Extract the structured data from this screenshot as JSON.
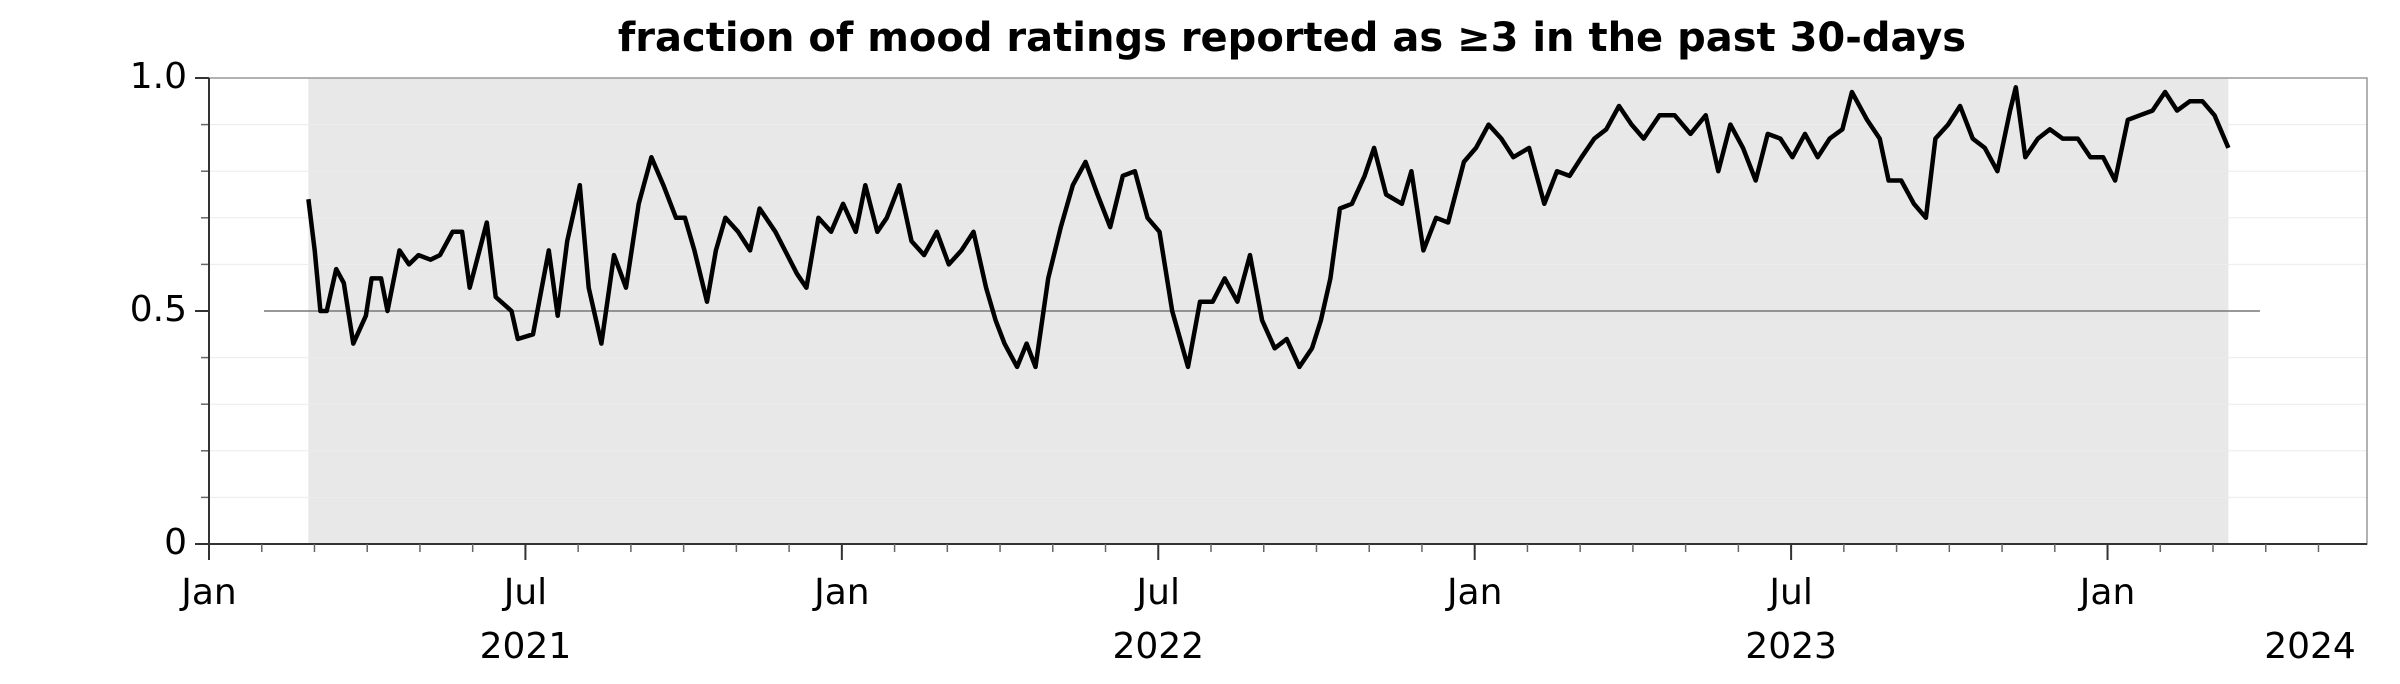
{
  "chart_data": {
    "type": "line",
    "title": "fraction of mood ratings reported as ≥3 in the past 30-days",
    "x": [
      2021.157,
      2021.167,
      2021.176,
      2021.186,
      2021.201,
      2021.213,
      2021.228,
      2021.248,
      2021.257,
      2021.272,
      2021.282,
      2021.301,
      2021.316,
      2021.331,
      2021.35,
      2021.365,
      2021.385,
      2021.4,
      2021.412,
      2021.439,
      2021.453,
      2021.478,
      2021.488,
      2021.512,
      2021.537,
      2021.551,
      2021.566,
      2021.586,
      2021.6,
      2021.62,
      2021.64,
      2021.659,
      2021.679,
      2021.699,
      2021.718,
      2021.738,
      2021.752,
      2021.767,
      2021.787,
      2021.801,
      2021.816,
      2021.836,
      2021.855,
      2021.87,
      2021.895,
      2021.914,
      2021.929,
      2021.944,
      2021.963,
      2021.983,
      2022.002,
      2022.022,
      2022.037,
      2022.056,
      2022.071,
      2022.091,
      2022.11,
      2022.13,
      2022.15,
      2022.169,
      2022.189,
      2022.208,
      2022.228,
      2022.243,
      2022.257,
      2022.277,
      2022.292,
      2022.306,
      2022.326,
      2022.346,
      2022.365,
      2022.385,
      2022.404,
      2022.424,
      2022.444,
      2022.463,
      2022.483,
      2022.502,
      2022.522,
      2022.547,
      2022.566,
      2022.586,
      2022.605,
      2022.625,
      2022.645,
      2022.664,
      2022.684,
      2022.703,
      2022.723,
      2022.743,
      2022.757,
      2022.772,
      2022.787,
      2022.806,
      2022.826,
      2022.841,
      2022.86,
      2022.885,
      2022.9,
      2022.919,
      2022.939,
      2022.958,
      2022.983,
      2023.002,
      2023.022,
      2023.042,
      2023.061,
      2023.086,
      2023.11,
      2023.13,
      2023.15,
      2023.169,
      2023.189,
      2023.208,
      2023.228,
      2023.248,
      2023.267,
      2023.292,
      2023.316,
      2023.341,
      2023.365,
      2023.385,
      2023.404,
      2023.424,
      2023.444,
      2023.463,
      2023.483,
      2023.502,
      2023.522,
      2023.542,
      2023.561,
      2023.581,
      2023.596,
      2023.62,
      2023.64,
      2023.654,
      2023.674,
      2023.694,
      2023.713,
      2023.728,
      2023.748,
      2023.767,
      2023.787,
      2023.806,
      2023.826,
      2023.846,
      2023.855,
      2023.87,
      2023.89,
      2023.909,
      2023.929,
      2023.953,
      2023.973,
      2023.993,
      2024.012,
      2024.032,
      2024.051,
      2024.071,
      2024.091,
      2024.11,
      2024.13,
      2024.15,
      2024.169,
      2024.191
    ],
    "series": [
      {
        "name": "fraction",
        "color": "#000000",
        "values": [
          0.74,
          0.63,
          0.5,
          0.5,
          0.59,
          0.56,
          0.43,
          0.49,
          0.57,
          0.57,
          0.5,
          0.63,
          0.6,
          0.62,
          0.61,
          0.62,
          0.67,
          0.67,
          0.55,
          0.69,
          0.53,
          0.5,
          0.44,
          0.45,
          0.63,
          0.49,
          0.65,
          0.77,
          0.55,
          0.43,
          0.62,
          0.55,
          0.73,
          0.83,
          0.77,
          0.7,
          0.7,
          0.63,
          0.52,
          0.63,
          0.7,
          0.67,
          0.63,
          0.72,
          0.67,
          0.62,
          0.58,
          0.55,
          0.7,
          0.67,
          0.73,
          0.67,
          0.77,
          0.67,
          0.7,
          0.77,
          0.65,
          0.62,
          0.67,
          0.6,
          0.63,
          0.67,
          0.55,
          0.48,
          0.43,
          0.38,
          0.43,
          0.38,
          0.57,
          0.68,
          0.77,
          0.82,
          0.75,
          0.68,
          0.79,
          0.8,
          0.7,
          0.67,
          0.5,
          0.38,
          0.52,
          0.52,
          0.57,
          0.52,
          0.62,
          0.48,
          0.42,
          0.44,
          0.38,
          0.42,
          0.48,
          0.57,
          0.72,
          0.73,
          0.79,
          0.85,
          0.75,
          0.73,
          0.8,
          0.63,
          0.7,
          0.69,
          0.82,
          0.85,
          0.9,
          0.87,
          0.83,
          0.85,
          0.73,
          0.8,
          0.79,
          0.83,
          0.87,
          0.89,
          0.94,
          0.9,
          0.87,
          0.92,
          0.92,
          0.88,
          0.92,
          0.8,
          0.9,
          0.85,
          0.78,
          0.88,
          0.87,
          0.83,
          0.88,
          0.83,
          0.87,
          0.89,
          0.97,
          0.91,
          0.87,
          0.78,
          0.78,
          0.73,
          0.7,
          0.87,
          0.9,
          0.94,
          0.87,
          0.85,
          0.8,
          0.93,
          0.98,
          0.83,
          0.87,
          0.89,
          0.87,
          0.87,
          0.83,
          0.83,
          0.78,
          0.91,
          0.92,
          0.93,
          0.97,
          0.93,
          0.95,
          0.95,
          0.92,
          0.85
        ]
      }
    ],
    "xlim": [
      2021.0,
      2024.41
    ],
    "xticks": [
      {
        "value": 2021.0,
        "label": "Jan"
      },
      {
        "value": 2021.5,
        "label": "Jul"
      },
      {
        "value": 2022.0,
        "label": "Jan"
      },
      {
        "value": 2022.5,
        "label": "Jul"
      },
      {
        "value": 2023.0,
        "label": "Jan"
      },
      {
        "value": 2023.5,
        "label": "Jul"
      },
      {
        "value": 2024.0,
        "label": "Jan"
      }
    ],
    "year_labels": [
      {
        "value": 2021.5,
        "label": "2021"
      },
      {
        "value": 2022.5,
        "label": "2022"
      },
      {
        "value": 2023.5,
        "label": "2023"
      },
      {
        "value": 2024.32,
        "label": "2024"
      }
    ],
    "ylim": [
      0,
      1
    ],
    "yticks": [
      0,
      0.5,
      {
        "value": 1,
        "label": "1.0"
      }
    ],
    "yminorticks": [
      0.1,
      0.2,
      0.3,
      0.4,
      0.6,
      0.7,
      0.8,
      0.9
    ],
    "reference_line": 0.5,
    "grid": true
  }
}
